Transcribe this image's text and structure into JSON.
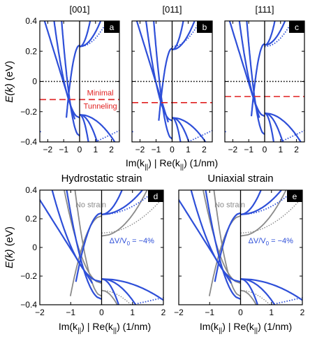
{
  "figure": {
    "ylabel_main": "E(k)",
    "ylabel_unit": "(eV)",
    "xlabel_im": "Im(k",
    "xlabel_re": "Re(k",
    "xlabel_sub": "||",
    "xlabel_sep": "|",
    "xlabel_unit": "(1/nm)",
    "close_paren": ")"
  },
  "chart_data": [
    {
      "type": "line",
      "panel": "a",
      "title": "[001]",
      "xlim": [
        -2.5,
        2.5
      ],
      "ylim": [
        -0.4,
        0.4
      ],
      "xticks": [
        -2,
        -1,
        0,
        1,
        2
      ],
      "yticks": [
        -0.4,
        -0.2,
        0,
        0.2,
        0.4
      ],
      "zero_line": 0,
      "tunneling_level": -0.12,
      "annotation": [
        "Minimal",
        "Tunneling"
      ],
      "colors": {
        "bands": "#2e4fd8",
        "zero": "#000000",
        "tunneling": "#e02020"
      }
    },
    {
      "type": "line",
      "panel": "b",
      "title": "[011]",
      "xlim": [
        -2.5,
        2.5
      ],
      "ylim": [
        -0.4,
        0.4
      ],
      "xticks": [
        -2,
        -1,
        0,
        1,
        2
      ],
      "yticks": [
        -0.4,
        -0.2,
        0,
        0.2,
        0.4
      ],
      "zero_line": 0,
      "tunneling_level": -0.14,
      "colors": {
        "bands": "#2e4fd8",
        "zero": "#000000",
        "tunneling": "#e02020"
      }
    },
    {
      "type": "line",
      "panel": "c",
      "title": "[111]",
      "xlim": [
        -2.5,
        2.5
      ],
      "ylim": [
        -0.4,
        0.4
      ],
      "xticks": [
        -2,
        -1,
        0,
        1,
        2
      ],
      "yticks": [
        -0.4,
        -0.2,
        0,
        0.2,
        0.4
      ],
      "zero_line": 0,
      "tunneling_level": -0.1,
      "colors": {
        "bands": "#2e4fd8",
        "zero": "#000000",
        "tunneling": "#e02020"
      }
    },
    {
      "type": "line",
      "panel": "d",
      "title": "Hydrostatic strain",
      "xlim": [
        -2,
        2
      ],
      "ylim": [
        -0.4,
        0.4
      ],
      "xticks": [
        -2,
        -1,
        0,
        1,
        2
      ],
      "yticks": [
        -0.4,
        -0.2,
        0,
        0.2,
        0.4
      ],
      "series_labels": [
        "No strain",
        "ΔV/V",
        "0",
        " = −4%"
      ],
      "colors": {
        "strained": "#2e4fd8",
        "unstrained": "#8a8a8a"
      }
    },
    {
      "type": "line",
      "panel": "e",
      "title": "Uniaxial strain",
      "xlim": [
        -2,
        2
      ],
      "ylim": [
        -0.4,
        0.4
      ],
      "xticks": [
        -2,
        -1,
        0,
        1,
        2
      ],
      "yticks": [
        -0.4,
        -0.2,
        0,
        0.2,
        0.4
      ],
      "series_labels": [
        "No strain",
        "ΔV/V",
        "0",
        " = −4%"
      ],
      "colors": {
        "strained": "#2e4fd8",
        "unstrained": "#8a8a8a"
      }
    }
  ]
}
